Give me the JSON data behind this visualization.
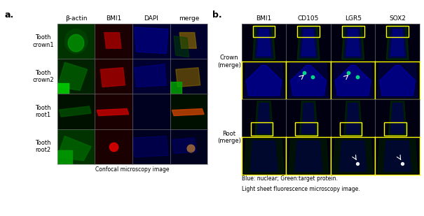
{
  "fig_width": 6.05,
  "fig_height": 3.09,
  "bg_color": "#ffffff",
  "panel_a": {
    "label": "a.",
    "col_headers": [
      "β-actin",
      "BMI1",
      "DAPI",
      "merge"
    ],
    "row_headers": [
      "Tooth\ncrown1",
      "Tooth\ncrown2",
      "Tooth\nroot1",
      "Tooth\nroot2"
    ],
    "footer": "Confocal microscopy image",
    "cell_colors": [
      [
        "#003300",
        "#1a0000",
        "#00001a",
        "#001a00"
      ],
      [
        "#002200",
        "#1a0000",
        "#00001a",
        "#001800"
      ],
      [
        "#001100",
        "#1a0000",
        "#000010",
        "#001000"
      ],
      [
        "#003300",
        "#1a0000",
        "#000015",
        "#001500"
      ]
    ],
    "n_rows": 4,
    "n_cols": 4
  },
  "panel_b": {
    "label": "b.",
    "col_headers": [
      "BMI1",
      "CD105",
      "LGR5",
      "SOX2"
    ],
    "row_group_headers": [
      "Crown\n(merge)",
      "Root\n(merge)"
    ],
    "footer_line1": "Blue: nuclear; Green:target protein.",
    "footer_line2": "Light sheet fluorescence microscopy image.",
    "cell_colors_crown_top": [
      "#000510",
      "#000510",
      "#000510",
      "#000510"
    ],
    "cell_colors_crown_bot": [
      "#000a20",
      "#000a15",
      "#000a18",
      "#000a25"
    ],
    "cell_colors_root_top": [
      "#000510",
      "#000510",
      "#000510",
      "#000510"
    ],
    "cell_colors_root_bot": [
      "#001510",
      "#000a20",
      "#000a20",
      "#000a20"
    ],
    "n_cols": 4
  },
  "font_size_header": 6.5,
  "font_size_row": 6.0,
  "font_size_footer": 5.5,
  "font_size_label": 9,
  "text_color": "#000000",
  "cell_border_color": "#888888",
  "yellow_border_color": "#ffff00"
}
